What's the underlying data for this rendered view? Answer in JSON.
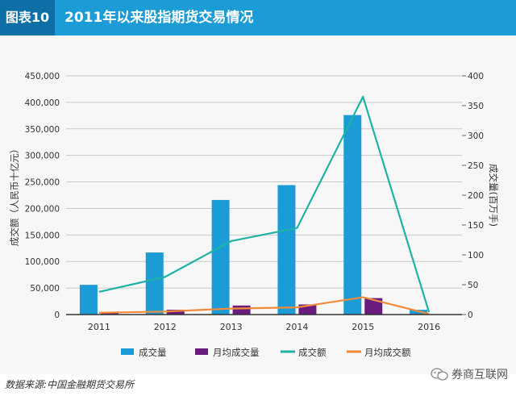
{
  "header": {
    "tag": "图表10",
    "title": "2011年以来股指期货交易情况"
  },
  "source": "数据来源:中国金融期货交易所",
  "watermark": "券商互联网",
  "colors": {
    "header_bg": "#1c9cd6",
    "tag_bg": "#0e6fa6",
    "volume": "#1c9cd6",
    "monthly_volume": "#6a1b7e",
    "turnover": "#1fb3a6",
    "monthly_turnover": "#f28a3a"
  },
  "chart_data": {
    "type": "bar+line",
    "categories": [
      "2011",
      "2012",
      "2013",
      "2014",
      "2015",
      "2016"
    ],
    "ylabel": "成交额（人民币十亿元）",
    "y2label": "成交量(百万手)",
    "ylim": [
      0,
      450000
    ],
    "y_ticks": [
      "0",
      "50,000",
      "100,000",
      "150,000",
      "200,000",
      "250,000",
      "300,000",
      "350,000",
      "400,000",
      "450,000"
    ],
    "y2lim": [
      0,
      400
    ],
    "y2_ticks": [
      "0",
      "50",
      "100",
      "150",
      "200",
      "250",
      "300",
      "350",
      "400"
    ],
    "grid": true,
    "legend": "bottom",
    "series": [
      {
        "name": "成交量",
        "type": "bar",
        "axis": "left",
        "values": [
          56000,
          117000,
          216000,
          244000,
          376000,
          9000
        ]
      },
      {
        "name": "月均成交量",
        "type": "bar",
        "axis": "left",
        "values": [
          4000,
          9000,
          17000,
          19000,
          31000,
          600
        ]
      },
      {
        "name": "成交额",
        "type": "line",
        "axis": "right",
        "values": [
          38,
          63,
          123,
          145,
          365,
          4
        ]
      },
      {
        "name": "月均成交额",
        "type": "line",
        "axis": "right",
        "values": [
          3,
          5,
          10,
          12,
          29,
          1
        ]
      }
    ]
  }
}
